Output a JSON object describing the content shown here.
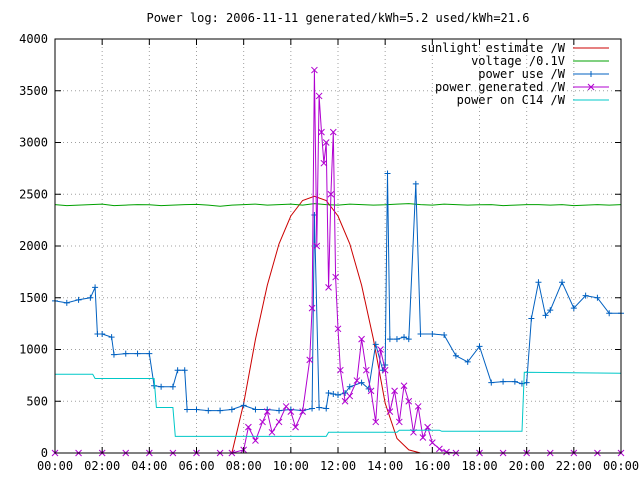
{
  "chart_data": {
    "type": "line",
    "title": "Power log: 2006-11-11 generated/kWh=5.2 used/kWh=21.6",
    "xlabel": "",
    "ylabel": "",
    "xlim": [
      0,
      24
    ],
    "ylim": [
      0,
      4000
    ],
    "grid": true,
    "legend_position": "top-right",
    "x_ticks": [
      {
        "value": 0,
        "label": "00:00"
      },
      {
        "value": 2,
        "label": "02:00"
      },
      {
        "value": 4,
        "label": "04:00"
      },
      {
        "value": 6,
        "label": "06:00"
      },
      {
        "value": 8,
        "label": "08:00"
      },
      {
        "value": 10,
        "label": "10:00"
      },
      {
        "value": 12,
        "label": "12:00"
      },
      {
        "value": 14,
        "label": "14:00"
      },
      {
        "value": 16,
        "label": "16:00"
      },
      {
        "value": 18,
        "label": "18:00"
      },
      {
        "value": 20,
        "label": "20:00"
      },
      {
        "value": 22,
        "label": "22:00"
      },
      {
        "value": 24,
        "label": "00:00"
      }
    ],
    "y_ticks": [
      {
        "value": 0,
        "label": "0"
      },
      {
        "value": 500,
        "label": "500"
      },
      {
        "value": 1000,
        "label": "1000"
      },
      {
        "value": 1500,
        "label": "1500"
      },
      {
        "value": 2000,
        "label": "2000"
      },
      {
        "value": 2500,
        "label": "2500"
      },
      {
        "value": 3000,
        "label": "3000"
      },
      {
        "value": 3500,
        "label": "3500"
      },
      {
        "value": 4000,
        "label": "4000"
      }
    ],
    "series": [
      {
        "name": "sunlight estimate /W",
        "color": "#cc0000",
        "marker": "none",
        "x": [
          0,
          7.5,
          8.0,
          8.5,
          9.0,
          9.5,
          10.0,
          10.5,
          11.0,
          11.5,
          12.0,
          12.5,
          13.0,
          13.5,
          14.0,
          14.5,
          15.0,
          15.5,
          16.0,
          24
        ],
        "y": [
          0,
          0,
          480,
          1100,
          1620,
          2020,
          2290,
          2440,
          2480,
          2440,
          2290,
          2020,
          1620,
          1100,
          480,
          140,
          30,
          0,
          0,
          0
        ]
      },
      {
        "name": "voltage /0.1V",
        "color": "#00a000",
        "marker": "none",
        "x": [
          0,
          0.5,
          1,
          1.5,
          2,
          2.5,
          3,
          3.5,
          4,
          4.5,
          5,
          5.5,
          6,
          6.5,
          7,
          7.5,
          8,
          8.5,
          9,
          9.5,
          10,
          10.5,
          11,
          11.5,
          12,
          12.5,
          13,
          13.5,
          14,
          14.5,
          15,
          15.5,
          16,
          16.5,
          17,
          17.5,
          18,
          18.5,
          19,
          19.5,
          20,
          20.5,
          21,
          21.5,
          22,
          22.5,
          23,
          23.5,
          24
        ],
        "y": [
          2400,
          2390,
          2395,
          2400,
          2405,
          2390,
          2395,
          2400,
          2398,
          2390,
          2395,
          2400,
          2402,
          2395,
          2385,
          2395,
          2400,
          2405,
          2395,
          2400,
          2405,
          2395,
          2410,
          2400,
          2395,
          2405,
          2400,
          2395,
          2398,
          2405,
          2410,
          2400,
          2395,
          2405,
          2400,
          2395,
          2398,
          2400,
          2390,
          2395,
          2400,
          2400,
          2395,
          2400,
          2390,
          2395,
          2400,
          2395,
          2400
        ]
      },
      {
        "name": "power use /W",
        "color": "#0060c0",
        "marker": "plus",
        "x": [
          0,
          0.5,
          1,
          1.5,
          1.7,
          1.8,
          2.0,
          2.4,
          2.5,
          3.0,
          3.5,
          4.0,
          4.2,
          4.5,
          5.0,
          5.2,
          5.5,
          5.6,
          6.0,
          6.5,
          7.0,
          7.5,
          8.0,
          8.5,
          9.0,
          9.5,
          10.0,
          10.5,
          10.9,
          11.0,
          11.2,
          11.5,
          11.6,
          11.8,
          12.0,
          12.3,
          12.5,
          13.0,
          13.3,
          13.6,
          13.9,
          14.0,
          14.1,
          14.2,
          14.5,
          14.8,
          15.0,
          15.3,
          15.5,
          16.0,
          16.5,
          17.0,
          17.5,
          18.0,
          18.5,
          19.0,
          19.5,
          19.8,
          20.0,
          20.2,
          20.5,
          20.8,
          21.0,
          21.5,
          22.0,
          22.5,
          23.0,
          23.5,
          24.0
        ],
        "y": [
          1470,
          1450,
          1480,
          1500,
          1600,
          1150,
          1150,
          1120,
          950,
          960,
          960,
          960,
          650,
          640,
          640,
          800,
          800,
          420,
          420,
          410,
          410,
          420,
          460,
          420,
          420,
          410,
          420,
          410,
          430,
          2300,
          440,
          430,
          580,
          570,
          560,
          580,
          640,
          680,
          620,
          1050,
          800,
          850,
          2700,
          1100,
          1100,
          1120,
          1100,
          2600,
          1150,
          1150,
          1140,
          940,
          880,
          1030,
          680,
          690,
          690,
          670,
          680,
          1300,
          1650,
          1330,
          1380,
          1650,
          1400,
          1520,
          1500,
          1350,
          1350
        ]
      },
      {
        "name": "power generated /W",
        "color": "#b000d0",
        "marker": "cross",
        "x": [
          0,
          1,
          2,
          3,
          4,
          5,
          6,
          7,
          7.5,
          8.0,
          8.2,
          8.5,
          8.8,
          9.0,
          9.2,
          9.5,
          9.8,
          10.0,
          10.2,
          10.5,
          10.8,
          10.9,
          11.0,
          11.1,
          11.2,
          11.3,
          11.4,
          11.5,
          11.6,
          11.7,
          11.8,
          11.9,
          12.0,
          12.1,
          12.3,
          12.5,
          12.8,
          13.0,
          13.2,
          13.4,
          13.6,
          13.8,
          14.0,
          14.2,
          14.4,
          14.6,
          14.8,
          15.0,
          15.2,
          15.4,
          15.6,
          15.8,
          16.0,
          16.3,
          16.6,
          17.0,
          18,
          19,
          20,
          21,
          22,
          23,
          24
        ],
        "y": [
          0,
          0,
          0,
          0,
          0,
          0,
          0,
          0,
          0,
          30,
          250,
          120,
          300,
          400,
          200,
          300,
          450,
          400,
          250,
          400,
          900,
          1400,
          3700,
          2000,
          3450,
          3100,
          2800,
          3000,
          1600,
          2500,
          3100,
          1700,
          1200,
          800,
          500,
          550,
          700,
          1100,
          800,
          600,
          300,
          1000,
          800,
          400,
          600,
          300,
          650,
          500,
          200,
          450,
          150,
          250,
          100,
          40,
          10,
          0,
          0,
          0,
          0,
          0,
          0,
          0,
          0
        ]
      },
      {
        "name": "power on C14 /W",
        "color": "#00c8c8",
        "marker": "none",
        "x": [
          0,
          1.6,
          1.7,
          4.2,
          4.3,
          5.0,
          5.1,
          11.0,
          11.5,
          11.6,
          14.5,
          14.6,
          16.3,
          16.4,
          19.8,
          19.9,
          24
        ],
        "y": [
          760,
          760,
          720,
          720,
          440,
          440,
          160,
          160,
          160,
          200,
          200,
          220,
          220,
          210,
          210,
          780,
          770
        ]
      }
    ]
  }
}
